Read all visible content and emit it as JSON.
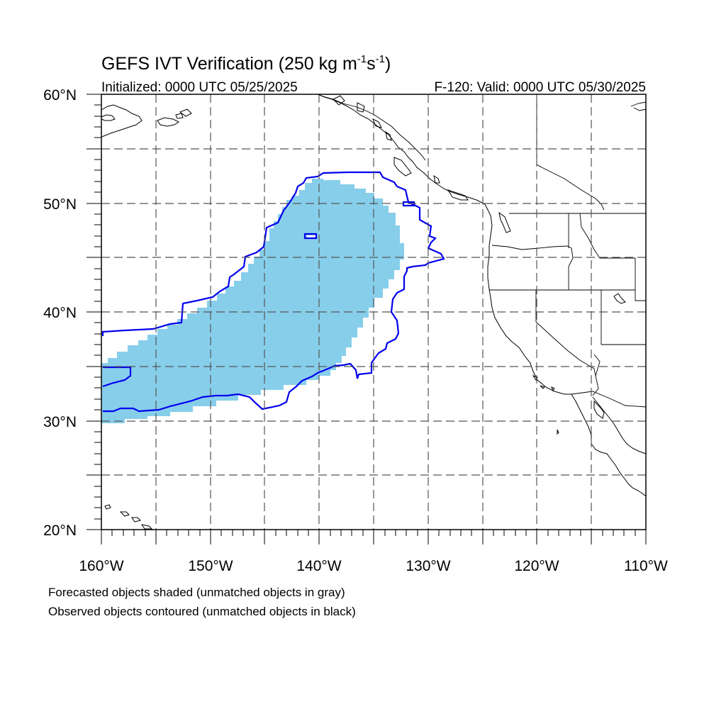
{
  "map": {
    "title_main": "GEFS IVT Verification (250 kg m",
    "title_sup1": "-1",
    "title_mid": "s",
    "title_sup2": "-1",
    "title_close": ")",
    "subtitle_left": "Initialized: 0000 UTC 05/25/2025",
    "subtitle_right": "F-120: Valid: 0000 UTC 05/30/2025",
    "lon_range": [
      -160,
      -110
    ],
    "lat_range": [
      20,
      60
    ],
    "lon_ticks": [
      "160°W",
      "150°W",
      "140°W",
      "130°W",
      "120°W",
      "110°W"
    ],
    "lat_ticks": [
      "60°N",
      "50°N",
      "40°N",
      "30°N",
      "20°N"
    ],
    "grid": "dashed every 5°",
    "colors": {
      "forecast_fill": "#87CEEB",
      "observed_contour": "#0000EE",
      "coastline": "#000000"
    }
  },
  "notes": {
    "line1": "Forecasted objects shaded (unmatched objects in gray)",
    "line2": "Observed objects contoured (unmatched objects in black)"
  }
}
